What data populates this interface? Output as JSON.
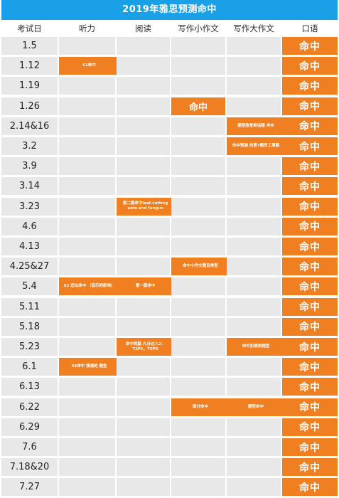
{
  "title": "2019年雅思预测命中",
  "headers": [
    "考试日",
    "听力",
    "阅读",
    "写作小作文",
    "写作大作文",
    "口语"
  ],
  "rows": [
    {
      "date": "1.5",
      "listening": "",
      "reading": "",
      "small_writing": "",
      "big_writing": "",
      "speaking": "命中"
    },
    {
      "date": "1.12",
      "listening": "S1命中",
      "reading": "",
      "small_writing": "",
      "big_writing": "",
      "speaking": "命中"
    },
    {
      "date": "1.19",
      "listening": "",
      "reading": "",
      "small_writing": "",
      "big_writing": "",
      "speaking": "命中"
    },
    {
      "date": "1.26",
      "listening": "",
      "reading": "",
      "small_writing": "命中",
      "big_writing": "",
      "speaking": "命中"
    },
    {
      "date": "2.14&16",
      "listening": "",
      "reading": "",
      "small_writing": "",
      "big_writing": "题型教育类话题 命中",
      "speaking": "命中"
    },
    {
      "date": "3.2",
      "listening": "",
      "reading": "",
      "small_writing": "",
      "big_writing": "命中预测 的第7题员工周期",
      "speaking": "命中"
    },
    {
      "date": "3.9",
      "listening": "",
      "reading": "",
      "small_writing": "",
      "big_writing": "",
      "speaking": "命中"
    },
    {
      "date": "3.14",
      "listening": "",
      "reading": "",
      "small_writing": "",
      "big_writing": "",
      "speaking": "命中"
    },
    {
      "date": "3.23",
      "listening": "",
      "reading": "第二篇命中leaf-cutting ants and fungus",
      "small_writing": "",
      "big_writing": "",
      "speaking": "命中"
    },
    {
      "date": "4.6",
      "listening": "",
      "reading": "",
      "small_writing": "",
      "big_writing": "",
      "speaking": "命中"
    },
    {
      "date": "4.13",
      "listening": "",
      "reading": "",
      "small_writing": "",
      "big_writing": "",
      "speaking": "命中"
    },
    {
      "date": "4.25&27",
      "listening": "",
      "reading": "",
      "small_writing": "命中小作文题目类型",
      "big_writing": "",
      "speaking": "命中"
    },
    {
      "date": "5.4",
      "listening": "S3 近似命中 （音乐的影响）",
      "reading": "第一篇命中",
      "small_writing": "",
      "big_writing": "",
      "speaking": "命中"
    },
    {
      "date": "5.11",
      "listening": "",
      "reading": "",
      "small_writing": "",
      "big_writing": "",
      "speaking": "命中"
    },
    {
      "date": "5.18",
      "listening": "",
      "reading": "",
      "small_writing": "",
      "big_writing": "",
      "speaking": "命中"
    },
    {
      "date": "5.23",
      "listening": "",
      "reading": "命中两篇-九分达人2：T2P1，T5P2",
      "small_writing": "",
      "big_writing": "命中犯罪类题型",
      "speaking": "命中"
    },
    {
      "date": "6.1",
      "listening": "S4命中 预测的 题鱼",
      "reading": "",
      "small_writing": "",
      "big_writing": "",
      "speaking": "命中"
    },
    {
      "date": "6.13",
      "listening": "",
      "reading": "",
      "small_writing": "",
      "big_writing": "",
      "speaking": "命中"
    },
    {
      "date": "6.22",
      "listening": "",
      "reading": "",
      "small_writing": "部分命中",
      "big_writing": "题型命中",
      "speaking": "命中"
    },
    {
      "date": "6.29",
      "listening": "",
      "reading": "",
      "small_writing": "",
      "big_writing": "",
      "speaking": "命中"
    },
    {
      "date": "7.6",
      "listening": "",
      "reading": "",
      "small_writing": "",
      "big_writing": "",
      "speaking": "命中"
    },
    {
      "date": "7.18&20",
      "listening": "",
      "reading": "",
      "small_writing": "",
      "big_writing": "",
      "speaking": "命中"
    },
    {
      "date": "7.27",
      "listening": "",
      "reading": "",
      "small_writing": "",
      "big_writing": "",
      "speaking": "命中"
    }
  ],
  "colors": {
    "title_bg": "#1aa0e6",
    "hit": "#f07f22",
    "empty": "#e8e8e8"
  }
}
